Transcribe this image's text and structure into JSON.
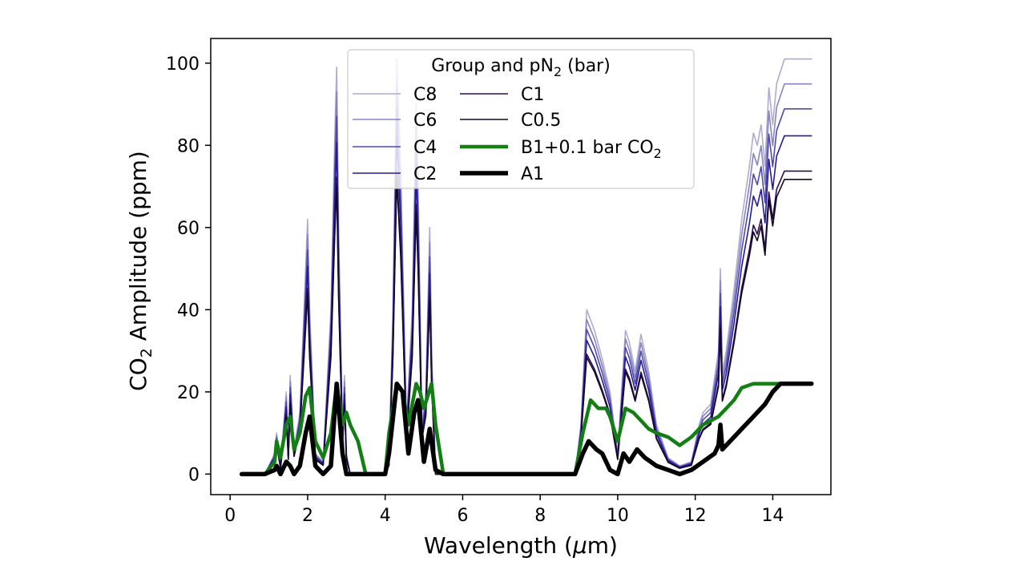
{
  "chart_data": {
    "type": "line",
    "xlabel_main": "Wavelength (",
    "xlabel_mu": "μ",
    "xlabel_unit": "m)",
    "ylabel_pre": "CO",
    "ylabel_sub": "2",
    "ylabel_post": " Amplitude (ppm)",
    "xlim": [
      -0.5,
      15.5
    ],
    "ylim": [
      -5,
      106
    ],
    "xticks": [
      0,
      2,
      4,
      6,
      8,
      10,
      12,
      14
    ],
    "yticks": [
      0,
      20,
      40,
      60,
      80,
      100
    ],
    "legend_title_pre": "Group and pN",
    "legend_title_sub": "2",
    "legend_title_post": " (bar)",
    "legend_placement": "top-center",
    "series": [
      {
        "name": "C8",
        "color": "#aeaad2",
        "width": 1.6,
        "scale": 1.0,
        "offset": 0,
        "x": [
          0.3,
          0.9,
          1.15,
          1.2,
          1.3,
          1.45,
          1.5,
          1.55,
          1.65,
          1.8,
          1.95,
          2.0,
          2.05,
          2.2,
          2.4,
          2.6,
          2.7,
          2.75,
          2.8,
          2.9,
          2.95,
          3.0,
          3.1,
          3.5,
          4.0,
          4.1,
          4.2,
          4.3,
          4.4,
          4.55,
          4.7,
          4.8,
          4.85,
          4.95,
          5.05,
          5.15,
          5.2,
          5.3,
          5.5,
          6.0,
          8.9,
          9.05,
          9.2,
          9.4,
          9.6,
          9.8,
          10.0,
          10.2,
          10.3,
          10.45,
          10.6,
          10.8,
          11.0,
          11.3,
          11.6,
          11.9,
          12.1,
          12.2,
          12.4,
          12.6,
          12.65,
          12.7,
          12.8,
          13.0,
          13.2,
          13.4,
          13.5,
          13.6,
          13.7,
          13.8,
          13.9,
          14.0,
          14.1,
          14.3,
          15.0
        ],
        "y": [
          0,
          0,
          5,
          10,
          2,
          20,
          5,
          24,
          6,
          15,
          50,
          62,
          40,
          5,
          3,
          40,
          82,
          99,
          60,
          10,
          24,
          5,
          0,
          0,
          0,
          3,
          40,
          101,
          75,
          12,
          40,
          90,
          70,
          12,
          20,
          60,
          30,
          0,
          0,
          0,
          0,
          12,
          40,
          35,
          28,
          20,
          5,
          35,
          32,
          25,
          34,
          25,
          12,
          4,
          2,
          3,
          12,
          15,
          17,
          30,
          50,
          25,
          30,
          45,
          62,
          75,
          83,
          80,
          85,
          75,
          94,
          85,
          95,
          101,
          101
        ]
      },
      {
        "name": "C6",
        "color": "#8683bf",
        "width": 1.6,
        "scale": 0.94,
        "offset": 0,
        "x": [
          0.3,
          0.9,
          1.15,
          1.2,
          1.3,
          1.45,
          1.5,
          1.55,
          1.65,
          1.8,
          1.95,
          2.0,
          2.05,
          2.2,
          2.4,
          2.6,
          2.7,
          2.75,
          2.8,
          2.9,
          2.95,
          3.0,
          3.1,
          3.5,
          4.0,
          4.1,
          4.2,
          4.3,
          4.4,
          4.55,
          4.7,
          4.8,
          4.85,
          4.95,
          5.05,
          5.15,
          5.2,
          5.3,
          5.5,
          6.0,
          8.9,
          9.05,
          9.2,
          9.4,
          9.6,
          9.8,
          10.0,
          10.2,
          10.3,
          10.45,
          10.6,
          10.8,
          11.0,
          11.3,
          11.6,
          11.9,
          12.1,
          12.2,
          12.4,
          12.6,
          12.65,
          12.7,
          12.8,
          13.0,
          13.2,
          13.4,
          13.5,
          13.6,
          13.7,
          13.8,
          13.9,
          14.0,
          14.1,
          14.3,
          15.0
        ],
        "y": [
          0,
          0,
          5,
          10,
          2,
          20,
          5,
          24,
          6,
          15,
          50,
          62,
          40,
          5,
          3,
          40,
          82,
          99,
          60,
          10,
          24,
          5,
          0,
          0,
          0,
          3,
          40,
          101,
          75,
          12,
          40,
          90,
          70,
          12,
          20,
          60,
          30,
          0,
          0,
          0,
          0,
          12,
          40,
          35,
          28,
          20,
          5,
          35,
          32,
          25,
          34,
          25,
          12,
          4,
          2,
          3,
          12,
          15,
          17,
          30,
          50,
          25,
          30,
          45,
          62,
          75,
          83,
          80,
          85,
          75,
          94,
          85,
          95,
          101,
          101
        ]
      },
      {
        "name": "C4",
        "color": "#4f49ad",
        "width": 1.6,
        "scale": 0.88,
        "offset": 0,
        "x": [
          0.3,
          0.9,
          1.15,
          1.2,
          1.3,
          1.45,
          1.5,
          1.55,
          1.65,
          1.8,
          1.95,
          2.0,
          2.05,
          2.2,
          2.4,
          2.6,
          2.7,
          2.75,
          2.8,
          2.9,
          2.95,
          3.0,
          3.1,
          3.5,
          4.0,
          4.1,
          4.2,
          4.3,
          4.4,
          4.55,
          4.7,
          4.8,
          4.85,
          4.95,
          5.05,
          5.15,
          5.2,
          5.3,
          5.5,
          6.0,
          8.9,
          9.05,
          9.2,
          9.4,
          9.6,
          9.8,
          10.0,
          10.2,
          10.3,
          10.45,
          10.6,
          10.8,
          11.0,
          11.3,
          11.6,
          11.9,
          12.1,
          12.2,
          12.4,
          12.6,
          12.65,
          12.7,
          12.8,
          13.0,
          13.2,
          13.4,
          13.5,
          13.6,
          13.7,
          13.8,
          13.9,
          14.0,
          14.1,
          14.3,
          15.0
        ],
        "y": [
          0,
          0,
          5,
          10,
          2,
          20,
          5,
          24,
          6,
          15,
          50,
          62,
          40,
          5,
          3,
          40,
          82,
          99,
          60,
          10,
          24,
          5,
          0,
          0,
          0,
          3,
          40,
          101,
          75,
          12,
          40,
          90,
          70,
          12,
          20,
          60,
          30,
          0,
          0,
          0,
          0,
          12,
          40,
          35,
          28,
          20,
          5,
          35,
          32,
          25,
          34,
          25,
          12,
          4,
          2,
          3,
          12,
          15,
          17,
          30,
          50,
          25,
          30,
          45,
          62,
          75,
          83,
          80,
          85,
          75,
          94,
          85,
          95,
          101,
          101
        ]
      },
      {
        "name": "C2",
        "color": "#24199a",
        "width": 1.6,
        "scale": 0.815,
        "offset": 0,
        "x": [
          0.3,
          0.9,
          1.15,
          1.2,
          1.3,
          1.45,
          1.5,
          1.55,
          1.65,
          1.8,
          1.95,
          2.0,
          2.05,
          2.2,
          2.4,
          2.6,
          2.7,
          2.75,
          2.8,
          2.9,
          2.95,
          3.0,
          3.1,
          3.5,
          4.0,
          4.1,
          4.2,
          4.3,
          4.4,
          4.55,
          4.7,
          4.8,
          4.85,
          4.95,
          5.05,
          5.15,
          5.2,
          5.3,
          5.5,
          6.0,
          8.9,
          9.05,
          9.2,
          9.4,
          9.6,
          9.8,
          10.0,
          10.2,
          10.3,
          10.45,
          10.6,
          10.8,
          11.0,
          11.3,
          11.6,
          11.9,
          12.1,
          12.2,
          12.4,
          12.6,
          12.65,
          12.7,
          12.8,
          13.0,
          13.2,
          13.4,
          13.5,
          13.6,
          13.7,
          13.8,
          13.9,
          14.0,
          14.1,
          14.3,
          15.0
        ],
        "y": [
          0,
          0,
          5,
          10,
          2,
          20,
          5,
          24,
          6,
          15,
          50,
          62,
          40,
          5,
          3,
          40,
          82,
          99,
          60,
          10,
          24,
          5,
          0,
          0,
          0,
          3,
          40,
          101,
          75,
          12,
          40,
          90,
          70,
          12,
          20,
          60,
          30,
          0,
          0,
          0,
          0,
          12,
          40,
          35,
          28,
          20,
          5,
          35,
          32,
          25,
          34,
          25,
          12,
          4,
          2,
          3,
          12,
          15,
          17,
          30,
          50,
          25,
          30,
          45,
          62,
          75,
          83,
          80,
          85,
          75,
          94,
          85,
          95,
          101,
          101
        ]
      },
      {
        "name": "C1",
        "color": "#2a0e4e",
        "width": 1.6,
        "scale": 0.73,
        "offset": 0,
        "x": [
          0.3,
          0.9,
          1.15,
          1.2,
          1.3,
          1.45,
          1.5,
          1.55,
          1.65,
          1.8,
          1.95,
          2.0,
          2.05,
          2.2,
          2.4,
          2.6,
          2.7,
          2.75,
          2.8,
          2.9,
          2.95,
          3.0,
          3.1,
          3.5,
          4.0,
          4.1,
          4.2,
          4.3,
          4.4,
          4.55,
          4.7,
          4.8,
          4.85,
          4.95,
          5.05,
          5.15,
          5.2,
          5.3,
          5.5,
          6.0,
          8.9,
          9.05,
          9.2,
          9.4,
          9.6,
          9.8,
          10.0,
          10.2,
          10.3,
          10.45,
          10.6,
          10.8,
          11.0,
          11.3,
          11.6,
          11.9,
          12.1,
          12.2,
          12.4,
          12.6,
          12.65,
          12.7,
          12.8,
          13.0,
          13.2,
          13.4,
          13.5,
          13.6,
          13.7,
          13.8,
          13.9,
          14.0,
          14.1,
          14.3,
          15.0
        ],
        "y": [
          0,
          0,
          5,
          10,
          2,
          20,
          5,
          24,
          6,
          15,
          50,
          62,
          40,
          5,
          3,
          40,
          82,
          99,
          60,
          10,
          24,
          5,
          0,
          0,
          0,
          3,
          40,
          101,
          75,
          12,
          40,
          90,
          70,
          12,
          20,
          60,
          30,
          0,
          0,
          0,
          0,
          12,
          40,
          35,
          28,
          20,
          5,
          35,
          32,
          25,
          34,
          25,
          12,
          4,
          2,
          3,
          12,
          15,
          17,
          30,
          50,
          25,
          30,
          45,
          62,
          75,
          83,
          80,
          85,
          75,
          94,
          85,
          95,
          101,
          101
        ]
      },
      {
        "name": "C0.5",
        "color": "#150726",
        "width": 1.6,
        "scale": 0.71,
        "offset": 0,
        "x": [
          0.3,
          0.9,
          1.15,
          1.2,
          1.3,
          1.45,
          1.5,
          1.55,
          1.65,
          1.8,
          1.95,
          2.0,
          2.05,
          2.2,
          2.4,
          2.6,
          2.7,
          2.75,
          2.8,
          2.9,
          2.95,
          3.0,
          3.1,
          3.5,
          4.0,
          4.1,
          4.2,
          4.3,
          4.4,
          4.55,
          4.7,
          4.8,
          4.85,
          4.95,
          5.05,
          5.15,
          5.2,
          5.3,
          5.5,
          6.0,
          8.9,
          9.05,
          9.2,
          9.4,
          9.6,
          9.8,
          10.0,
          10.2,
          10.3,
          10.45,
          10.6,
          10.8,
          11.0,
          11.3,
          11.6,
          11.9,
          12.1,
          12.2,
          12.4,
          12.6,
          12.65,
          12.7,
          12.8,
          13.0,
          13.2,
          13.4,
          13.5,
          13.6,
          13.7,
          13.8,
          13.9,
          14.0,
          14.1,
          14.3,
          15.0
        ],
        "y": [
          0,
          0,
          5,
          10,
          2,
          20,
          5,
          24,
          6,
          15,
          50,
          62,
          40,
          5,
          3,
          40,
          82,
          99,
          60,
          10,
          24,
          5,
          0,
          0,
          0,
          3,
          40,
          101,
          75,
          12,
          40,
          90,
          70,
          12,
          20,
          60,
          30,
          0,
          0,
          0,
          0,
          12,
          40,
          35,
          28,
          20,
          5,
          35,
          32,
          25,
          34,
          25,
          12,
          4,
          2,
          3,
          12,
          15,
          17,
          30,
          50,
          25,
          30,
          45,
          62,
          75,
          83,
          80,
          85,
          75,
          94,
          85,
          95,
          101,
          101
        ]
      },
      {
        "name_pre": "B1+0.1 bar CO",
        "name_sub": "2",
        "color": "#137e13",
        "width": 4.5,
        "scale": 1.0,
        "offset": 0,
        "x": [
          0.3,
          0.9,
          1.15,
          1.2,
          1.3,
          1.45,
          1.55,
          1.65,
          1.8,
          1.95,
          2.05,
          2.2,
          2.4,
          2.6,
          2.75,
          2.9,
          3.0,
          3.1,
          3.3,
          3.5,
          4.0,
          4.1,
          4.3,
          4.45,
          4.6,
          4.8,
          4.9,
          5.0,
          5.2,
          5.3,
          5.5,
          6.0,
          8.9,
          9.1,
          9.3,
          9.5,
          9.7,
          9.8,
          10.0,
          10.2,
          10.4,
          10.6,
          10.8,
          11.0,
          11.3,
          11.6,
          11.9,
          12.2,
          12.6,
          12.8,
          13.0,
          13.2,
          13.5,
          14.0,
          15.0
        ],
        "y": [
          0,
          0,
          3,
          8,
          4,
          12,
          14,
          6,
          10,
          19,
          21,
          8,
          4,
          10,
          22,
          12,
          15,
          12,
          8,
          0,
          0,
          10,
          22,
          20,
          12,
          22,
          20,
          16,
          22,
          12,
          0,
          0,
          0,
          10,
          18,
          16,
          16,
          14,
          8,
          16,
          15,
          13,
          11,
          10,
          9,
          7,
          9,
          12,
          14,
          16,
          18,
          21,
          22,
          22,
          22
        ]
      },
      {
        "name": "A1",
        "color": "#000000",
        "width": 5.5,
        "scale": 1.0,
        "offset": 0,
        "x": [
          0.3,
          0.9,
          1.15,
          1.2,
          1.3,
          1.45,
          1.55,
          1.65,
          1.8,
          1.95,
          2.05,
          2.2,
          2.4,
          2.6,
          2.75,
          2.9,
          3.0,
          3.1,
          3.3,
          3.5,
          4.0,
          4.1,
          4.3,
          4.45,
          4.6,
          4.75,
          4.85,
          5.0,
          5.15,
          5.3,
          5.5,
          6.0,
          8.9,
          9.1,
          9.25,
          9.45,
          9.6,
          9.8,
          10.0,
          10.15,
          10.3,
          10.5,
          10.7,
          11.0,
          11.3,
          11.6,
          11.9,
          12.2,
          12.5,
          12.6,
          12.65,
          12.7,
          12.9,
          13.2,
          13.5,
          13.8,
          14.0,
          14.2,
          15.0
        ],
        "y": [
          0,
          0,
          1,
          2,
          0,
          3,
          2,
          0,
          2,
          10,
          14,
          2,
          0,
          2,
          22,
          5,
          0,
          0,
          0,
          0,
          0,
          5,
          22,
          20,
          5,
          15,
          18,
          3,
          11,
          1,
          0,
          0,
          0,
          5,
          8,
          6,
          5,
          1,
          0,
          5,
          3,
          6,
          4,
          2,
          1,
          0,
          1,
          3,
          5,
          7,
          12,
          6,
          8,
          11,
          14,
          17,
          20,
          22,
          22
        ]
      }
    ]
  }
}
